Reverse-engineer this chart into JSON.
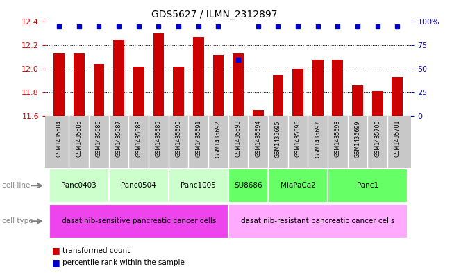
{
  "title": "GDS5627 / ILMN_2312897",
  "samples": [
    "GSM1435684",
    "GSM1435685",
    "GSM1435686",
    "GSM1435687",
    "GSM1435688",
    "GSM1435689",
    "GSM1435690",
    "GSM1435691",
    "GSM1435692",
    "GSM1435693",
    "GSM1435694",
    "GSM1435695",
    "GSM1435696",
    "GSM1435697",
    "GSM1435698",
    "GSM1435699",
    "GSM1435700",
    "GSM1435701"
  ],
  "transformed_counts": [
    12.13,
    12.13,
    12.04,
    12.25,
    12.02,
    12.3,
    12.02,
    12.27,
    12.12,
    12.13,
    11.65,
    11.95,
    12.0,
    12.08,
    12.08,
    11.86,
    11.81,
    11.93
  ],
  "percentile_ranks": [
    95,
    95,
    95,
    95,
    95,
    95,
    95,
    95,
    95,
    60,
    95,
    95,
    95,
    95,
    95,
    95,
    95,
    95
  ],
  "bar_color": "#cc0000",
  "percentile_color": "#0000cc",
  "ylim_left": [
    11.6,
    12.4
  ],
  "ylim_right": [
    0,
    100
  ],
  "yticks_left": [
    11.6,
    11.8,
    12.0,
    12.2,
    12.4
  ],
  "yticks_right": [
    0,
    25,
    50,
    75,
    100
  ],
  "cell_lines": [
    {
      "label": "Panc0403",
      "start": 0,
      "end": 2,
      "color": "#ccffcc"
    },
    {
      "label": "Panc0504",
      "start": 3,
      "end": 5,
      "color": "#ccffcc"
    },
    {
      "label": "Panc1005",
      "start": 6,
      "end": 8,
      "color": "#ccffcc"
    },
    {
      "label": "SU8686",
      "start": 9,
      "end": 10,
      "color": "#66ff66"
    },
    {
      "label": "MiaPaCa2",
      "start": 11,
      "end": 13,
      "color": "#66ff66"
    },
    {
      "label": "Panc1",
      "start": 14,
      "end": 17,
      "color": "#66ff66"
    }
  ],
  "cell_types": [
    {
      "label": "dasatinib-sensitive pancreatic cancer cells",
      "start": 0,
      "end": 8,
      "color": "#ee44ee"
    },
    {
      "label": "dasatinib-resistant pancreatic cancer cells",
      "start": 9,
      "end": 17,
      "color": "#ffaaff"
    }
  ],
  "legend_items": [
    {
      "color": "#cc0000",
      "label": "transformed count"
    },
    {
      "color": "#0000cc",
      "label": "percentile rank within the sample"
    }
  ],
  "gsm_bg_color": "#c8c8c8",
  "gsm_line_color": "#ffffff",
  "cell_line_label_color": "#888888",
  "cell_type_label_color": "#888888"
}
